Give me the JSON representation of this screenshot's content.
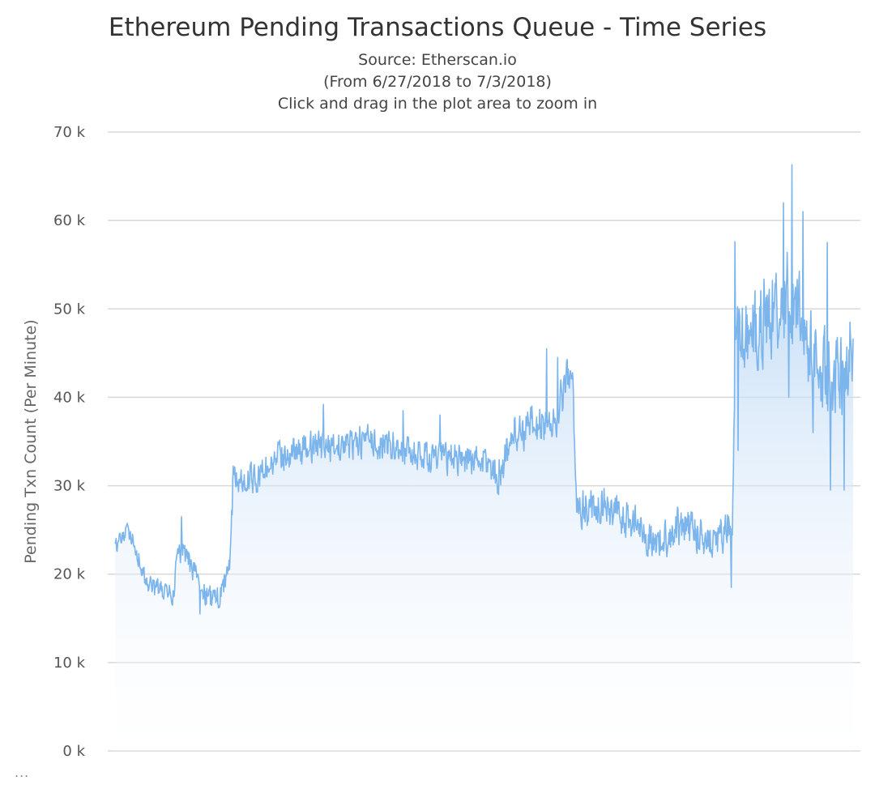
{
  "chart_data": {
    "type": "area",
    "title": "Ethereum Pending Transactions Queue - Time Series",
    "subtitle": [
      "Source: Etherscan.io",
      "(From 6/27/2018 to 7/3/2018)",
      "Click and drag in the plot area to zoom in"
    ],
    "ylabel": "Pending Txn Count (Per Minute)",
    "xlabel": "",
    "ylim": [
      0,
      70000
    ],
    "yticks": [
      0,
      10000,
      20000,
      30000,
      40000,
      50000,
      60000,
      70000
    ],
    "ytick_labels": [
      "0 k",
      "10 k",
      "20 k",
      "30 k",
      "40 k",
      "50 k",
      "60 k",
      "70 k"
    ],
    "x_range": [
      "6/27/2018",
      "7/3/2018"
    ],
    "grid": true,
    "legend": "none",
    "series": [
      {
        "trend_points": [
          [
            0.0,
            23000
          ],
          [
            0.01,
            24200
          ],
          [
            0.02,
            24800
          ],
          [
            0.03,
            22500
          ],
          [
            0.04,
            19500
          ],
          [
            0.05,
            18500
          ],
          [
            0.06,
            18200
          ],
          [
            0.07,
            17800
          ],
          [
            0.08,
            17500
          ],
          [
            0.083,
            22000
          ],
          [
            0.09,
            22500
          ],
          [
            0.1,
            21500
          ],
          [
            0.11,
            19500
          ],
          [
            0.12,
            18000
          ],
          [
            0.13,
            17000
          ],
          [
            0.14,
            17500
          ],
          [
            0.15,
            19000
          ],
          [
            0.157,
            22500
          ],
          [
            0.16,
            31000
          ],
          [
            0.17,
            30500
          ],
          [
            0.18,
            31000
          ],
          [
            0.19,
            30500
          ],
          [
            0.2,
            31500
          ],
          [
            0.21,
            32500
          ],
          [
            0.23,
            33500
          ],
          [
            0.26,
            34200
          ],
          [
            0.3,
            34500
          ],
          [
            0.34,
            35000
          ],
          [
            0.38,
            34500
          ],
          [
            0.4,
            33500
          ],
          [
            0.44,
            33000
          ],
          [
            0.47,
            33200
          ],
          [
            0.5,
            32800
          ],
          [
            0.52,
            31200
          ],
          [
            0.54,
            36000
          ],
          [
            0.56,
            36500
          ],
          [
            0.58,
            37000
          ],
          [
            0.6,
            37500
          ],
          [
            0.61,
            42000
          ],
          [
            0.62,
            41500
          ],
          [
            0.625,
            28000
          ],
          [
            0.64,
            27500
          ],
          [
            0.66,
            28000
          ],
          [
            0.68,
            26500
          ],
          [
            0.7,
            26000
          ],
          [
            0.72,
            24500
          ],
          [
            0.74,
            23500
          ],
          [
            0.76,
            25500
          ],
          [
            0.78,
            25000
          ],
          [
            0.8,
            24000
          ],
          [
            0.82,
            24000
          ],
          [
            0.83,
            25500
          ],
          [
            0.836,
            23000
          ],
          [
            0.84,
            45000
          ],
          [
            0.86,
            47000
          ],
          [
            0.88,
            49000
          ],
          [
            0.9,
            50000
          ],
          [
            0.91,
            52000
          ],
          [
            0.92,
            51000
          ],
          [
            0.93,
            49000
          ],
          [
            0.94,
            45000
          ],
          [
            0.96,
            43000
          ],
          [
            0.98,
            42000
          ],
          [
            1.0,
            42500
          ]
        ],
        "noise_amplitude": [
          [
            0.0,
            1300
          ],
          [
            0.16,
            2200
          ],
          [
            0.3,
            2500
          ],
          [
            0.5,
            2500
          ],
          [
            0.54,
            3200
          ],
          [
            0.625,
            3000
          ],
          [
            0.836,
            3000
          ],
          [
            0.84,
            6500
          ],
          [
            1.0,
            6000
          ]
        ],
        "spikes": [
          [
            0.09,
            26500
          ],
          [
            0.115,
            15500
          ],
          [
            0.282,
            39200
          ],
          [
            0.39,
            38500
          ],
          [
            0.44,
            38000
          ],
          [
            0.52,
            29000
          ],
          [
            0.585,
            45500
          ],
          [
            0.6,
            44500
          ],
          [
            0.84,
            57600
          ],
          [
            0.844,
            34000
          ],
          [
            0.906,
            62000
          ],
          [
            0.917,
            66300
          ],
          [
            0.932,
            61000
          ],
          [
            0.913,
            40000
          ],
          [
            0.946,
            36000
          ],
          [
            0.965,
            57500
          ],
          [
            0.969,
            29500
          ],
          [
            0.988,
            29500
          ],
          [
            0.996,
            48500
          ],
          [
            0.835,
            18500
          ]
        ]
      }
    ],
    "colors": {
      "line": "#7cb5ec",
      "fill_top": "#a9cdf2",
      "fill_bottom": "#ffffff",
      "grid": "#d8d8d8"
    }
  },
  "menu": {
    "context_menu_label": "..."
  }
}
